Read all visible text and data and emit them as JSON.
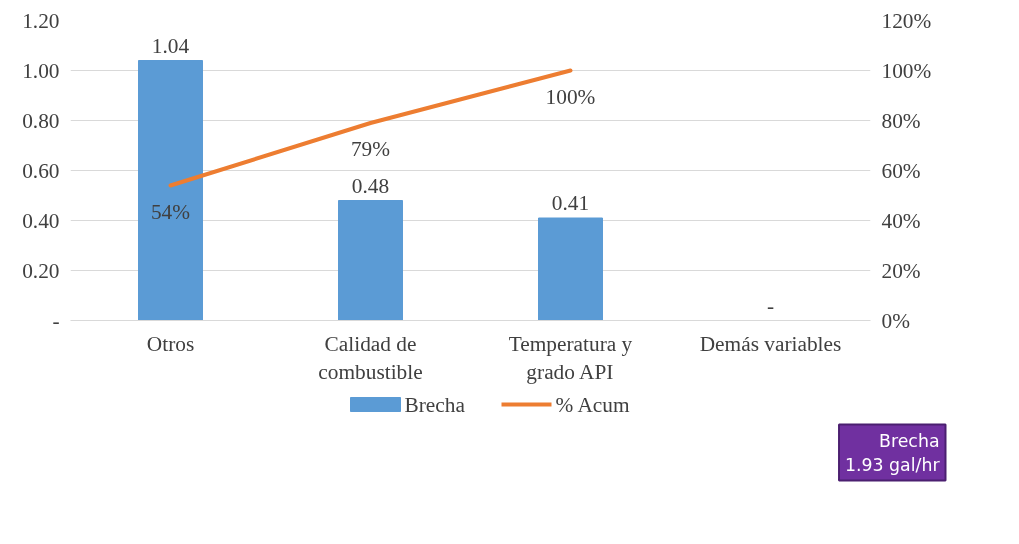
{
  "chart_data": {
    "type": "bar",
    "categories": [
      "Otros",
      "Calidad de combustible",
      "Temperatura y grado API",
      "Demás variables"
    ],
    "series": [
      {
        "name": "Brecha",
        "color": "#5b9bd5",
        "values": [
          1.04,
          0.48,
          0.41,
          0
        ],
        "value_labels": [
          "1.04",
          "0.48",
          "0.41",
          "-"
        ]
      },
      {
        "name": "% Acum",
        "type": "line",
        "axis": "y2",
        "color": "#ed7d31",
        "values": [
          54,
          79,
          100,
          null
        ],
        "value_labels": [
          "54%",
          "79%",
          "100%",
          null
        ]
      }
    ],
    "ylim": [
      0,
      1.2
    ],
    "yticks": [
      {
        "value": 0,
        "label": "-"
      },
      {
        "value": 0.2,
        "label": "0.20"
      },
      {
        "value": 0.4,
        "label": "0.40"
      },
      {
        "value": 0.6,
        "label": "0.60"
      },
      {
        "value": 0.8,
        "label": "0.80"
      },
      {
        "value": 1.0,
        "label": "1.00"
      },
      {
        "value": 1.2,
        "label": "1.20"
      }
    ],
    "y2lim": [
      0,
      120
    ],
    "y2ticks": [
      {
        "value": 0,
        "label": "0%"
      },
      {
        "value": 20,
        "label": "20%"
      },
      {
        "value": 40,
        "label": "40%"
      },
      {
        "value": 60,
        "label": "60%"
      },
      {
        "value": 80,
        "label": "80%"
      },
      {
        "value": 100,
        "label": "100%"
      },
      {
        "value": 120,
        "label": "120%"
      }
    ],
    "grid": "y",
    "legend": "bottom",
    "annotations": [
      "Brecha\n1.93 gal/hr"
    ]
  }
}
